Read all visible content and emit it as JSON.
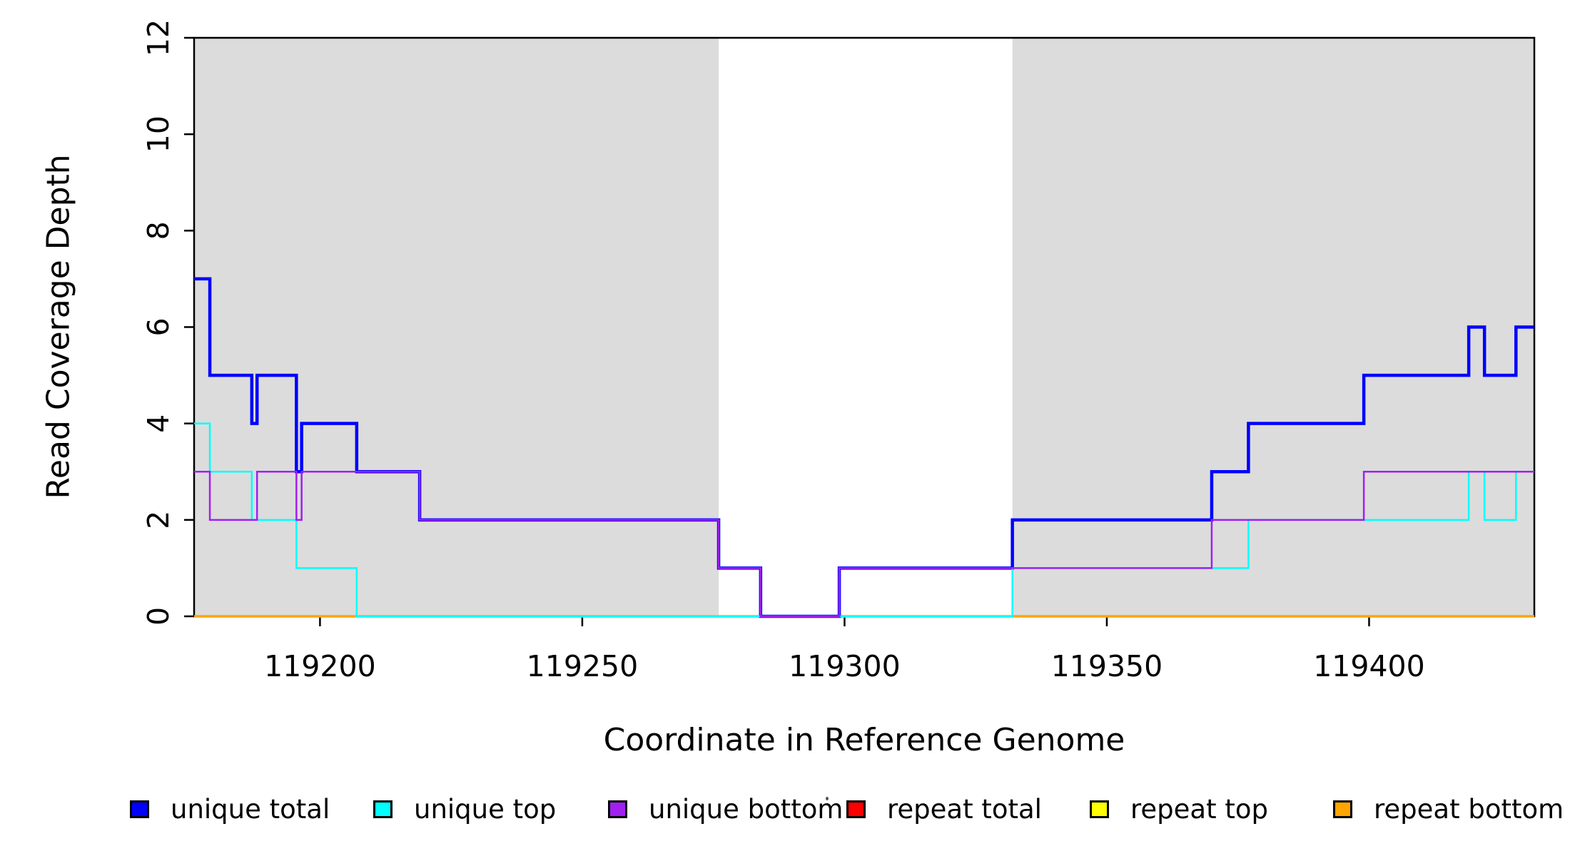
{
  "chart_data": {
    "type": "line",
    "subtype": "step-coverage",
    "title": "",
    "xlabel": "Coordinate in Reference Genome",
    "ylabel": "Read Coverage Depth",
    "xlim": [
      119176,
      119431.5
    ],
    "ylim": [
      0,
      12
    ],
    "x_ticks": [
      119200,
      119250,
      119300,
      119350,
      119400
    ],
    "y_ticks": [
      0,
      2,
      4,
      6,
      8,
      10,
      12
    ],
    "grid": false,
    "background_color": "#FFFFFF",
    "region_color": "#DCDCDC",
    "repeat_regions": [
      [
        119176,
        119276
      ],
      [
        119332,
        119431.5
      ]
    ],
    "series": [
      {
        "name": "repeat total",
        "color": "#FF0000",
        "width": 2.5,
        "points": [
          [
            119176,
            0
          ]
        ]
      },
      {
        "name": "repeat top",
        "color": "#FFFF00",
        "width": 2.5,
        "points": [
          [
            119176,
            0
          ]
        ]
      },
      {
        "name": "repeat bottom",
        "color": "#FFA500",
        "width": 3.5,
        "points": [
          [
            119176,
            0
          ]
        ]
      },
      {
        "name": "unique total",
        "color": "#0000FF",
        "width": 4.5,
        "points": [
          [
            119176,
            7
          ],
          [
            119179,
            5
          ],
          [
            119187,
            4
          ],
          [
            119188,
            5
          ],
          [
            119195.5,
            3
          ],
          [
            119196.5,
            4
          ],
          [
            119207,
            3
          ],
          [
            119219,
            2
          ],
          [
            119276,
            1
          ],
          [
            119284,
            0
          ],
          [
            119299,
            1
          ],
          [
            119332,
            2
          ],
          [
            119370,
            3
          ],
          [
            119377,
            4
          ],
          [
            119399,
            5
          ],
          [
            119419,
            6
          ],
          [
            119422,
            5
          ],
          [
            119428,
            6
          ]
        ]
      },
      {
        "name": "unique top",
        "color": "#00FFFF",
        "width": 2.5,
        "points": [
          [
            119176,
            4
          ],
          [
            119179,
            3
          ],
          [
            119187,
            2
          ],
          [
            119195.5,
            1
          ],
          [
            119207,
            0
          ],
          [
            119332,
            1
          ],
          [
            119377,
            2
          ],
          [
            119419,
            3
          ],
          [
            119422,
            2
          ],
          [
            119428,
            3
          ]
        ]
      },
      {
        "name": "unique bottom",
        "color": "#A020F0",
        "width": 2.5,
        "points": [
          [
            119176,
            3
          ],
          [
            119179,
            2
          ],
          [
            119188,
            3
          ],
          [
            119195.5,
            2
          ],
          [
            119196.5,
            3
          ],
          [
            119219,
            2
          ],
          [
            119276,
            1
          ],
          [
            119284,
            0
          ],
          [
            119299,
            1
          ],
          [
            119370,
            2
          ],
          [
            119399,
            3
          ]
        ]
      }
    ],
    "legend": [
      {
        "label": "unique total",
        "color": "#0000FF"
      },
      {
        "label": "unique top",
        "color": "#00FFFF"
      },
      {
        "label": "unique bottom",
        "color": "#A020F0"
      },
      {
        "label": "repeat total",
        "color": "#FF0000"
      },
      {
        "label": "repeat top",
        "color": "#FFFF00"
      },
      {
        "label": "repeat bottom",
        "color": "#FFA500"
      }
    ],
    "legend_position": "bottom"
  }
}
